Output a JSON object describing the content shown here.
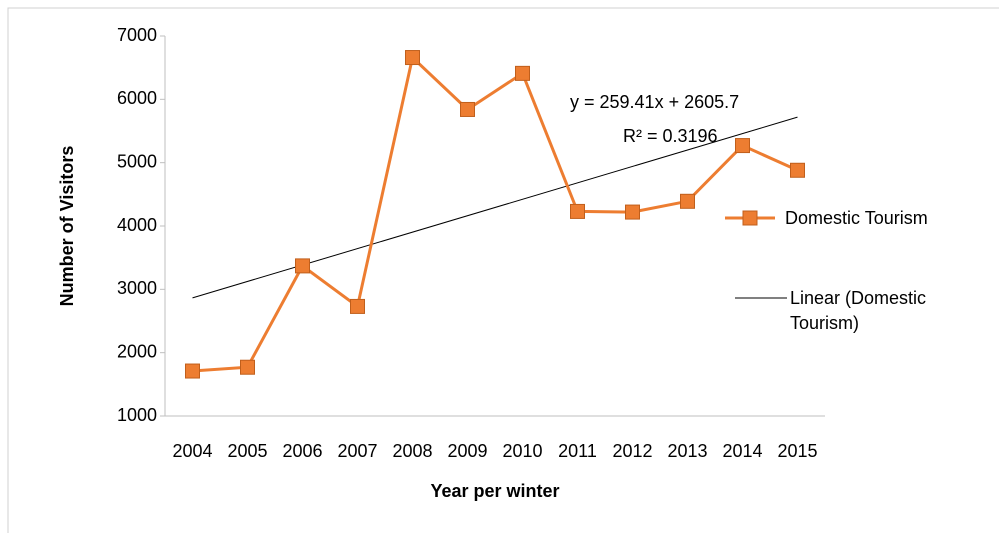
{
  "chart_data": {
    "type": "line",
    "x_label": "Year per winter",
    "y_label": "Number of Visitors",
    "categories": [
      "2004",
      "2005",
      "2006",
      "2007",
      "2008",
      "2009",
      "2010",
      "2011",
      "2012",
      "2013",
      "2014",
      "2015"
    ],
    "series": [
      {
        "name": "Domestic Tourism",
        "color": "#ed7d31",
        "values": [
          1710,
          1770,
          3370,
          2730,
          6660,
          5840,
          6410,
          4230,
          4220,
          4390,
          5270,
          4880
        ]
      }
    ],
    "trendline": {
      "name": "Linear (Domestic Tourism)",
      "slope": 259.41,
      "intercept": 2605.7,
      "equation": "y = 259.41x + 2605.7",
      "r_squared": "R² = 0.3196",
      "color": "#000000"
    },
    "ylim": [
      1000,
      7000
    ],
    "yticks": [
      1000,
      2000,
      3000,
      4000,
      5000,
      6000,
      7000
    ],
    "grid": false,
    "legend": "right"
  }
}
